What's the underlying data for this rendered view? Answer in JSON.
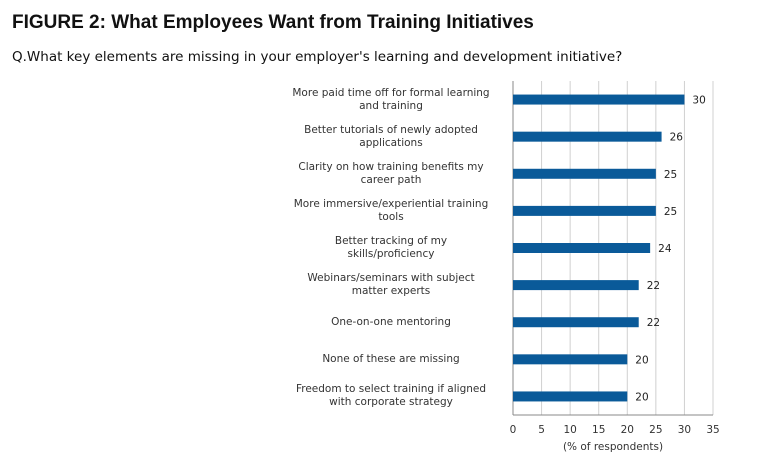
{
  "figure": {
    "title": "FIGURE 2: What Employees Want from Training Initiatives",
    "question": "Q.What key elements are missing in your employer's learning and development initiative?"
  },
  "colors": {
    "bar": "#0a5a99",
    "grid": "#d0d0d0",
    "axis": "#888888"
  },
  "chart_data": {
    "type": "bar",
    "orientation": "horizontal",
    "categories": [
      [
        "More paid time off for formal learning",
        "and training"
      ],
      [
        "Better tutorials of newly adopted",
        "applications"
      ],
      [
        "Clarity on how training benefits my",
        "career path"
      ],
      [
        "More immersive/experiential training",
        "tools"
      ],
      [
        "Better tracking of my",
        "skills/proficiency"
      ],
      [
        "Webinars/seminars with subject",
        "matter experts"
      ],
      [
        "One-on-one mentoring"
      ],
      [
        "None of these are missing"
      ],
      [
        "Freedom to select training if aligned",
        "with corporate strategy"
      ]
    ],
    "values": [
      30,
      26,
      25,
      25,
      24,
      22,
      22,
      20,
      20
    ],
    "xlabel": "(% of respondents)",
    "ylabel": "",
    "xlim": [
      0,
      35
    ],
    "xticks": [
      0,
      5,
      10,
      15,
      20,
      25,
      30,
      35
    ],
    "grid": "vertical",
    "data_labels": true
  }
}
